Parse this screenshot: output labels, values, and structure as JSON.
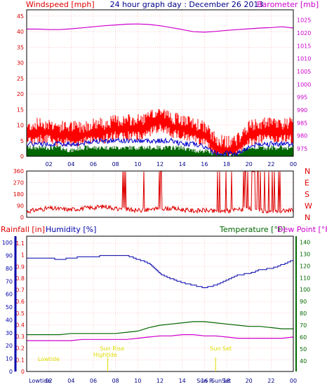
{
  "title": "24 hour graph day : December 26 2013",
  "colors": {
    "wind": "#ff0000",
    "gust": "#ff0000",
    "avg": "#0000cc",
    "baro": "#cc00cc",
    "dir": "#dd0000",
    "rain": "#ff0000",
    "humidity": "#0000aa",
    "temp": "#006600",
    "dew": "#cc00cc",
    "axis_hum": "#0000aa",
    "sun": "#dddd00"
  },
  "x_ticks": [
    "02",
    "04",
    "06",
    "08",
    "10",
    "12",
    "14",
    "16",
    "18",
    "20",
    "22",
    "00"
  ],
  "chart_data": [
    {
      "type": "line",
      "left_label": "Windspeed [mph]",
      "right_label": "Barometer [mb]",
      "left_ticks": [
        "0",
        "5",
        "10",
        "15",
        "20",
        "25",
        "30",
        "35",
        "40",
        "45"
      ],
      "right_ticks": [
        "975",
        "980",
        "985",
        "990",
        "995",
        "1000",
        "1005",
        "1010",
        "1015",
        "1020",
        "1025"
      ],
      "ylim_left": [
        0,
        47
      ],
      "ylim_right": [
        972,
        1029
      ],
      "x": [
        0,
        1,
        2,
        3,
        4,
        5,
        6,
        7,
        8,
        9,
        10,
        11,
        12,
        13,
        14,
        15,
        16,
        17,
        18,
        19,
        20,
        21,
        22,
        23,
        24
      ],
      "series": [
        {
          "name": "Windspeed",
          "values": [
            9,
            10,
            10,
            9,
            9,
            9,
            10,
            10,
            11,
            11,
            11,
            12,
            14,
            12,
            11,
            10,
            9,
            5,
            4,
            5,
            9,
            10,
            10,
            10,
            10
          ]
        },
        {
          "name": "Barometer",
          "values": [
            1021.5,
            1021.5,
            1021.3,
            1021.3,
            1021.6,
            1022.0,
            1022.4,
            1022.8,
            1023.1,
            1023.4,
            1023.5,
            1023.3,
            1022.8,
            1022.1,
            1021.3,
            1020.5,
            1020.3,
            1020.6,
            1021.0,
            1021.3,
            1021.6,
            1021.9,
            1022.1,
            1022.4,
            1021.9
          ]
        },
        {
          "name": "Average",
          "values": [
            4,
            4,
            4,
            4,
            4,
            4,
            5,
            5,
            5,
            5,
            5,
            5,
            5,
            5,
            4,
            4,
            3,
            1,
            1,
            1,
            3,
            4,
            4,
            4,
            4
          ]
        },
        {
          "name": "Low",
          "values": [
            2,
            2,
            2,
            2,
            1,
            2,
            2,
            2,
            2,
            2,
            2,
            2,
            2,
            2,
            2,
            1,
            1,
            0,
            0,
            0,
            2,
            2,
            2,
            2,
            2
          ]
        }
      ]
    },
    {
      "type": "line",
      "name": "Wind direction",
      "left_ticks": [
        "0",
        "90",
        "180",
        "270",
        "360"
      ],
      "right_ticks": [
        "N",
        "W",
        "S",
        "E",
        "N"
      ],
      "ylim": [
        0,
        360
      ],
      "x": [
        0,
        1,
        2,
        3,
        4,
        5,
        6,
        7,
        8,
        9,
        10,
        11,
        12,
        13,
        14,
        15,
        16,
        17,
        18,
        19,
        20,
        21,
        22,
        23,
        24
      ],
      "values": [
        45,
        60,
        70,
        65,
        60,
        70,
        75,
        85,
        70,
        60,
        55,
        60,
        65,
        70,
        60,
        50,
        55,
        45,
        50,
        60,
        65,
        50,
        45,
        50,
        55
      ]
    },
    {
      "type": "line",
      "left_label": "Rainfall [in]",
      "left2_label": "Humidity [%]",
      "right_label": "Temperature [°F]",
      "right2_label": "Dew Point [°F]",
      "rain_ticks": [
        "0",
        "0.1",
        "0.2",
        "0.3",
        "0.4",
        "0.5",
        "0.6",
        "0.7",
        "0.8",
        "0.9",
        "1",
        "1.1"
      ],
      "hum_ticks": [
        "0",
        "10",
        "20",
        "30",
        "40",
        "50",
        "60",
        "70",
        "80",
        "90",
        "100"
      ],
      "temp_ticks": [
        "40",
        "50",
        "60",
        "70",
        "80",
        "90",
        "100",
        "110",
        "120",
        "130",
        "140"
      ],
      "ylim_temp": [
        31,
        145
      ],
      "x": [
        0,
        1,
        2,
        3,
        4,
        5,
        6,
        7,
        8,
        9,
        10,
        11,
        12,
        13,
        14,
        15,
        16,
        17,
        18,
        19,
        20,
        21,
        22,
        23,
        24
      ],
      "series": [
        {
          "name": "Humidity",
          "values": [
            88,
            88,
            88,
            87,
            88,
            89,
            89,
            90,
            90,
            90,
            87,
            84,
            76,
            72,
            69,
            67,
            65,
            67,
            71,
            75,
            76,
            79,
            80,
            83,
            87
          ]
        },
        {
          "name": "Temperature",
          "values": [
            62,
            62,
            62,
            62,
            63,
            63,
            63,
            63,
            63,
            64,
            65,
            68,
            70,
            71,
            72,
            73,
            73,
            72,
            71,
            70,
            69,
            69,
            68,
            67,
            67
          ]
        },
        {
          "name": "Dew Point",
          "values": [
            57,
            57,
            57,
            57,
            57,
            58,
            58,
            58,
            58,
            58,
            59,
            60,
            61,
            61,
            62,
            62,
            61,
            61,
            60,
            59,
            59,
            59,
            59,
            59,
            60
          ]
        },
        {
          "name": "Rainfall",
          "values": [
            0,
            0,
            0,
            0,
            0,
            0,
            0,
            0,
            0,
            0,
            0,
            0,
            0,
            0,
            0,
            0,
            0,
            0,
            0,
            0,
            0,
            0,
            0,
            0,
            0
          ]
        }
      ],
      "annotations": [
        "Lowtide",
        "Hightide",
        "Sun Rise",
        "Sun Set"
      ],
      "bottom_labels": [
        "Lowtide",
        "Hightide",
        "Sun Rise",
        "Sun Set"
      ]
    }
  ]
}
